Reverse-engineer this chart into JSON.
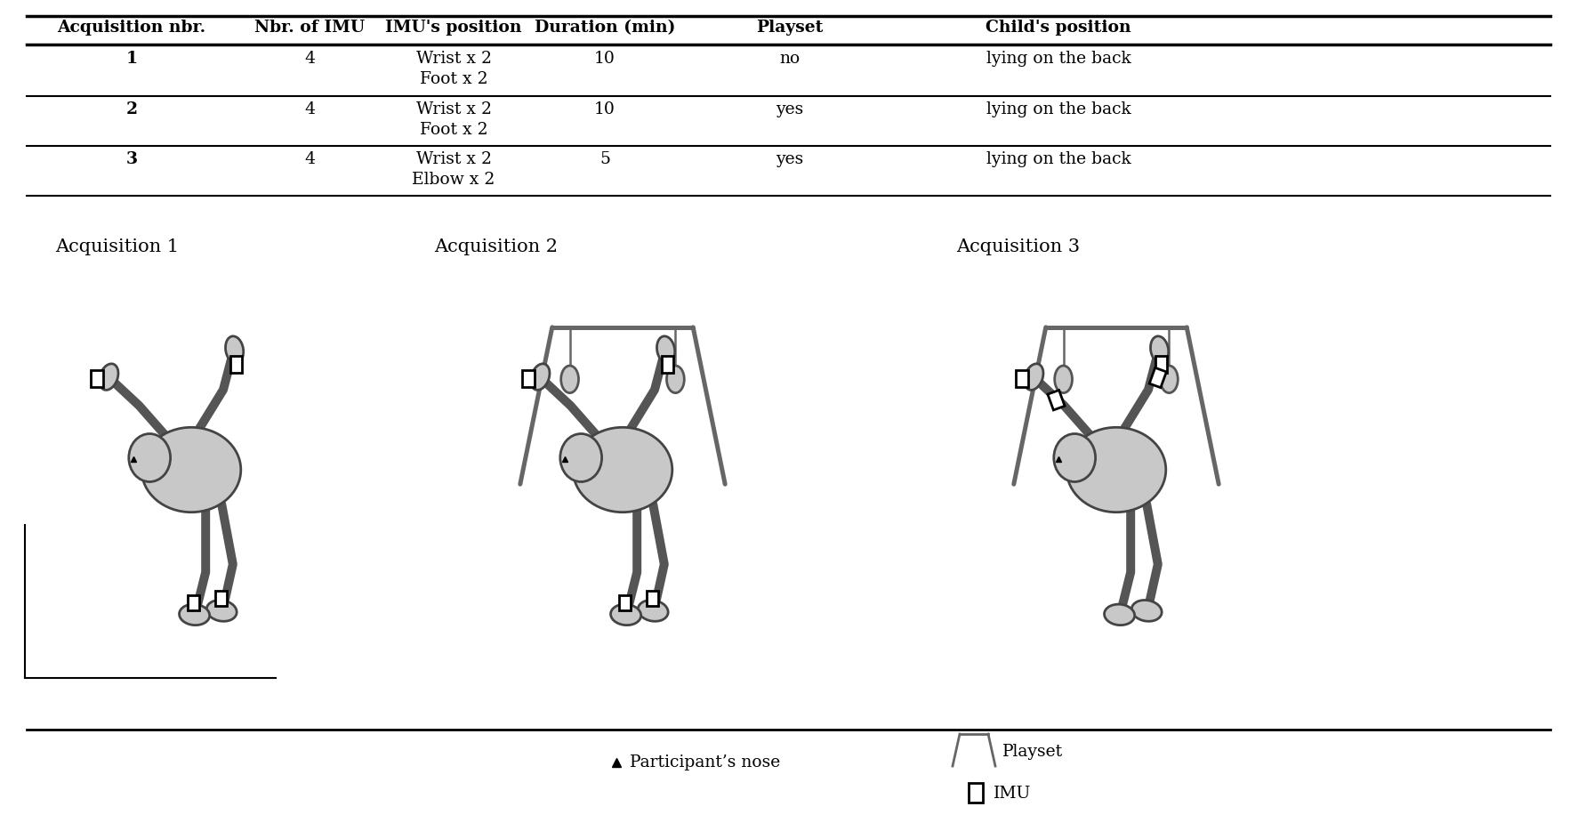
{
  "table": {
    "headers": [
      "Acquisition nbr.",
      "Nbr. of IMU",
      "IMU's position",
      "Duration (min)",
      "Playset",
      "Child's position"
    ],
    "rows": [
      {
        "acq": "1",
        "nbr": "4",
        "pos1": "Wrist x 2",
        "pos2": "Foot x 2",
        "dur": "10",
        "play": "no",
        "child": "lying on the back"
      },
      {
        "acq": "2",
        "nbr": "4",
        "pos1": "Wrist x 2",
        "pos2": "Foot x 2",
        "dur": "10",
        "play": "yes",
        "child": "lying on the back"
      },
      {
        "acq": "3",
        "nbr": "4",
        "pos1": "Wrist x 2",
        "pos2": "Elbow x 2",
        "dur": "5",
        "play": "yes",
        "child": "lying on the back"
      }
    ]
  },
  "acq_labels": [
    "Acquisition 1",
    "Acquisition 2",
    "Acquisition 3"
  ],
  "legend_nose": "▴ Participant’s nose",
  "legend_playset": "Playset",
  "legend_imu": "IMU",
  "bg_color": "#ffffff",
  "body_color": "#c8c8c8",
  "line_color": "#555555",
  "imu_color": "#ffffff",
  "imu_border": "#000000",
  "playset_color": "#666666"
}
